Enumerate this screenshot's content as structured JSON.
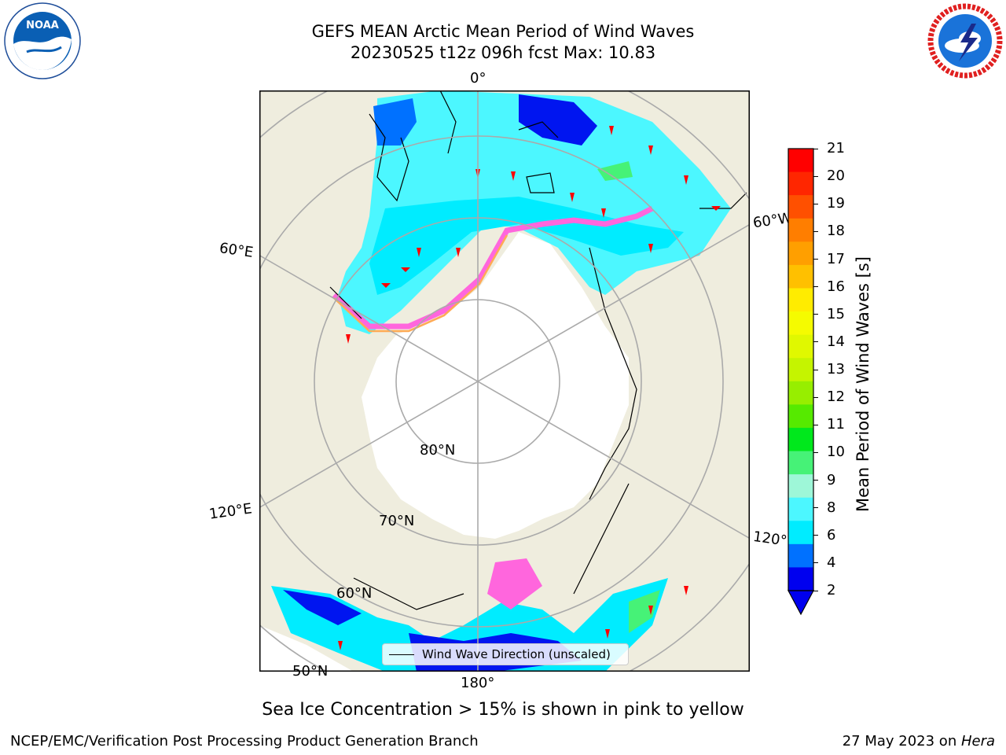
{
  "title": {
    "line1": "GEFS MEAN Arctic Mean Period of Wind Waves",
    "line2": "20230525 t12z 096h fcst   Max: 10.83"
  },
  "logos": {
    "left": {
      "text": "NOAA",
      "icon": "noaa-logo"
    },
    "right": {
      "icon": "nws-logo"
    }
  },
  "map": {
    "background_land": "#efedde",
    "ocean_colors": {
      "dark_blue": "#0015f0",
      "light_cyan": "#4cf7ff",
      "cyan": "#00ecff",
      "green": "#46f277"
    },
    "grid_labels": {
      "lon_0": "0°",
      "lon_60w": "60°W",
      "lon_60e": "60°E",
      "lon_120e": "120°E",
      "lon_120w": "120°W",
      "lon_180": "180°",
      "lat_80n": "80°N",
      "lat_70n": "70°N",
      "lat_60n": "60°N",
      "lat_50n": "50°N"
    },
    "legend": {
      "label": "Wind Wave Direction (unscaled)"
    }
  },
  "colorbar": {
    "label": "Mean Period of Wind Waves [s]",
    "ticks": [
      "21",
      "20",
      "19",
      "18",
      "17",
      "16",
      "15",
      "14",
      "13",
      "12",
      "11",
      "10",
      "9",
      "8",
      "6",
      "4",
      "2"
    ],
    "colors": [
      "#ff0000",
      "#ff2600",
      "#ff5000",
      "#ff7e00",
      "#ff9f00",
      "#ffc000",
      "#ffec00",
      "#f5fb00",
      "#e0f800",
      "#c5f400",
      "#97ee00",
      "#56ea00",
      "#00e81c",
      "#46f277",
      "#9ef7d8",
      "#4cf7ff",
      "#00ecff",
      "#0071ff",
      "#0000ef"
    ]
  },
  "subcaption": "Sea Ice Concentration > 15% is shown in pink to yellow",
  "footer": {
    "left": "NCEP/EMC/Verification Post Processing Product Generation Branch",
    "right_prefix": "27 May 2023 on ",
    "right_host": "Hera"
  }
}
